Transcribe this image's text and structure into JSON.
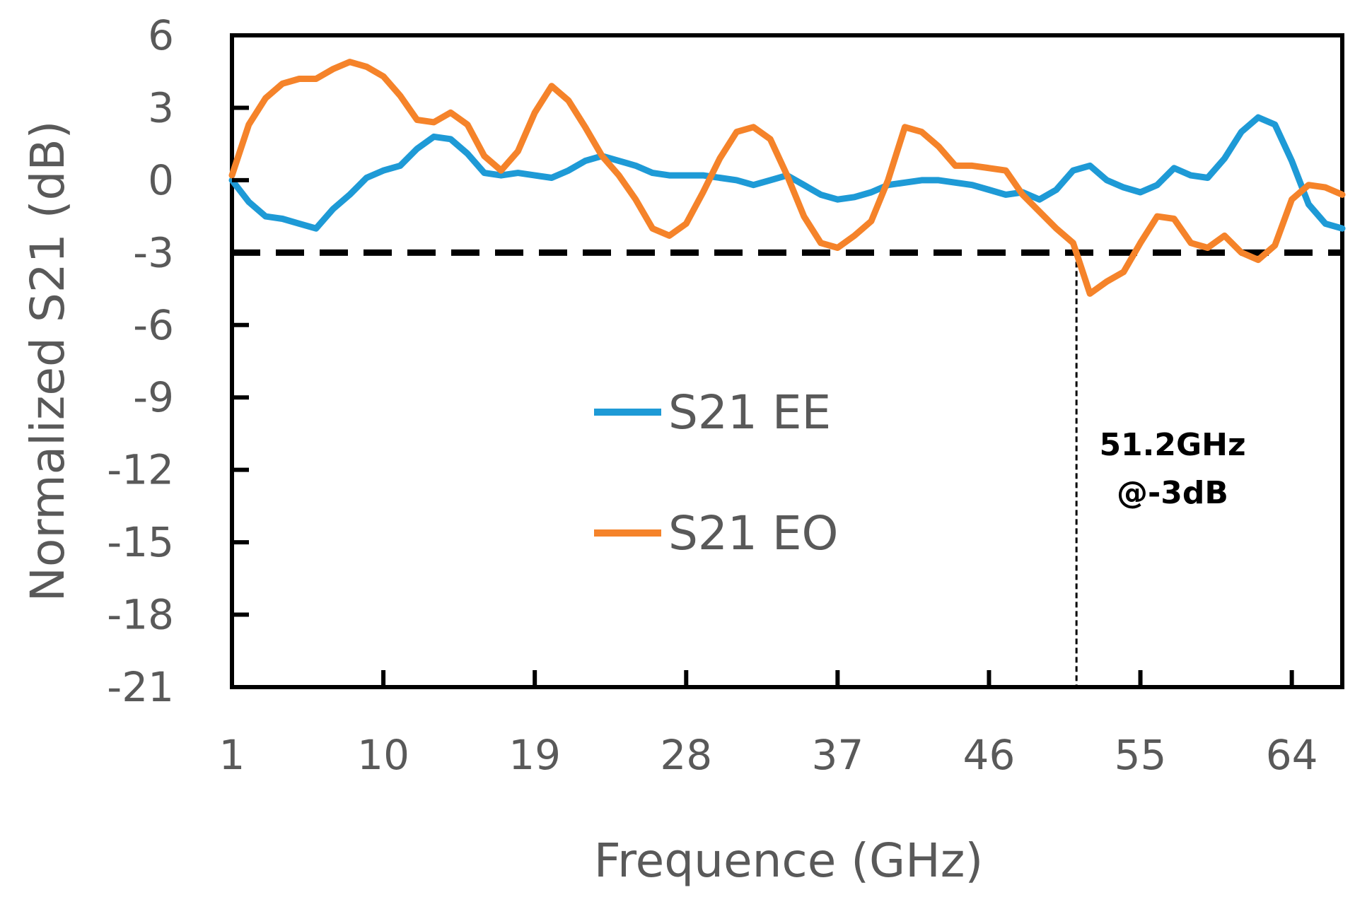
{
  "chart_data": {
    "type": "line",
    "title": "",
    "xlabel": "Frequence (GHz)",
    "ylabel": "Normalized S21 (dB)",
    "xlim": [
      1,
      67
    ],
    "ylim": [
      -21,
      6
    ],
    "xticks": [
      1,
      10,
      19,
      28,
      37,
      46,
      55,
      64
    ],
    "yticks": [
      6,
      3,
      0,
      -3,
      -6,
      -9,
      -12,
      -15,
      -18,
      -21
    ],
    "grid": false,
    "legend_position": "center",
    "reference_line": {
      "y": -3,
      "style": "dashed",
      "color": "#000000"
    },
    "annotation": {
      "x": 51.2,
      "line1": "51.2GHz",
      "line2": "@-3dB"
    },
    "series": [
      {
        "name": "S21 EE",
        "color": "#1E9AD6",
        "x": [
          1,
          2,
          3,
          4,
          5,
          6,
          7,
          8,
          9,
          10,
          11,
          12,
          13,
          14,
          15,
          16,
          17,
          18,
          19,
          20,
          21,
          22,
          23,
          24,
          25,
          26,
          27,
          28,
          29,
          30,
          31,
          32,
          33,
          34,
          35,
          36,
          37,
          38,
          39,
          40,
          41,
          42,
          43,
          44,
          45,
          46,
          47,
          48,
          49,
          50,
          51,
          52,
          53,
          54,
          55,
          56,
          57,
          58,
          59,
          60,
          61,
          62,
          63,
          64,
          65,
          66,
          67
        ],
        "values": [
          0.0,
          -0.9,
          -1.5,
          -1.6,
          -1.8,
          -2.0,
          -1.2,
          -0.6,
          0.1,
          0.4,
          0.6,
          1.3,
          1.8,
          1.7,
          1.1,
          0.3,
          0.2,
          0.3,
          0.2,
          0.1,
          0.4,
          0.8,
          1.0,
          0.8,
          0.6,
          0.3,
          0.2,
          0.2,
          0.2,
          0.1,
          0.0,
          -0.2,
          0.0,
          0.2,
          -0.2,
          -0.6,
          -0.8,
          -0.7,
          -0.5,
          -0.2,
          -0.1,
          0.0,
          0.0,
          -0.1,
          -0.2,
          -0.4,
          -0.6,
          -0.5,
          -0.8,
          -0.4,
          0.4,
          0.6,
          0.0,
          -0.3,
          -0.5,
          -0.2,
          0.5,
          0.2,
          0.1,
          0.9,
          2.0,
          2.6,
          2.3,
          0.8,
          -1.0,
          -1.8,
          -2.0
        ]
      },
      {
        "name": "S21 EO",
        "color": "#F5832A",
        "x": [
          1,
          2,
          3,
          4,
          5,
          6,
          7,
          8,
          9,
          10,
          11,
          12,
          13,
          14,
          15,
          16,
          17,
          18,
          19,
          20,
          21,
          22,
          23,
          24,
          25,
          26,
          27,
          28,
          29,
          30,
          31,
          32,
          33,
          34,
          35,
          36,
          37,
          38,
          39,
          40,
          41,
          42,
          43,
          44,
          45,
          46,
          47,
          48,
          49,
          50,
          51,
          52,
          53,
          54,
          55,
          56,
          57,
          58,
          59,
          60,
          61,
          62,
          63,
          64,
          65,
          66,
          67
        ],
        "values": [
          0.2,
          2.3,
          3.4,
          4.0,
          4.2,
          4.2,
          4.6,
          4.9,
          4.7,
          4.3,
          3.5,
          2.5,
          2.4,
          2.8,
          2.3,
          1.0,
          0.4,
          1.2,
          2.8,
          3.9,
          3.3,
          2.2,
          1.0,
          0.2,
          -0.8,
          -2.0,
          -2.3,
          -1.8,
          -0.5,
          0.9,
          2.0,
          2.2,
          1.7,
          0.2,
          -1.5,
          -2.6,
          -2.8,
          -2.3,
          -1.7,
          0.0,
          2.2,
          2.0,
          1.4,
          0.6,
          0.6,
          0.5,
          0.4,
          -0.6,
          -1.3,
          -2.0,
          -2.6,
          -4.7,
          -4.2,
          -3.8,
          -2.6,
          -1.5,
          -1.6,
          -2.6,
          -2.8,
          -2.3,
          -3.0,
          -3.3,
          -2.7,
          -0.8,
          -0.2,
          -0.3,
          -0.6
        ]
      }
    ],
    "legend": [
      {
        "name": "S21 EE",
        "color": "#1E9AD6"
      },
      {
        "name": "S21 EO",
        "color": "#F5832A"
      }
    ]
  }
}
